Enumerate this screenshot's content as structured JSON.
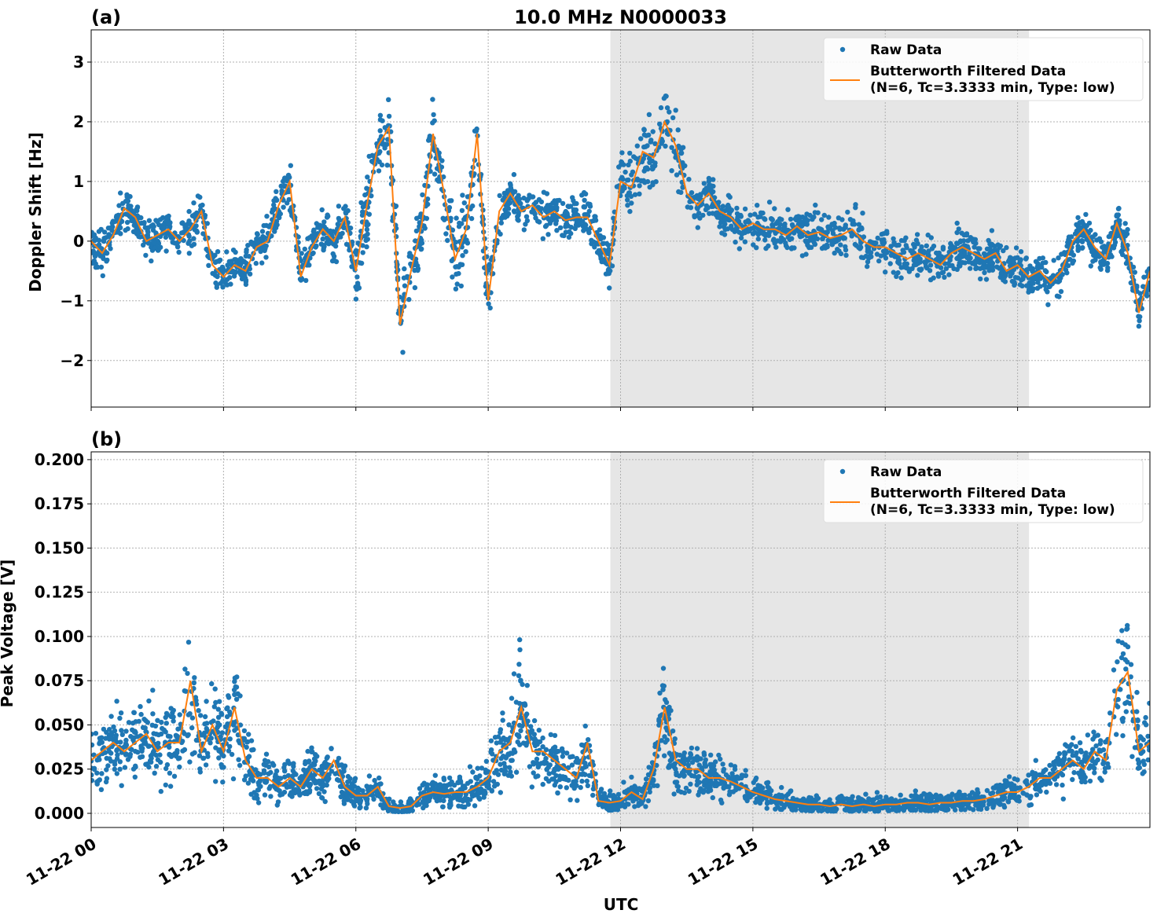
{
  "chart_data": [
    {
      "type": "scatter",
      "panel_label": "(a)",
      "title": "10.0 MHz N0000033",
      "xlabel": "",
      "ylabel": "Doppler Shift [Hz]",
      "xlim_hours": [
        0,
        24
      ],
      "ylim": [
        -2.78,
        3.54
      ],
      "yticks": [
        -2,
        -1,
        0,
        1,
        2,
        3
      ],
      "ytick_labels": [
        "−2",
        "−1",
        "0",
        "1",
        "2",
        "3"
      ],
      "grid": true,
      "legend_placement": "top-right",
      "legend": [
        "Raw Data",
        "Butterworth Filtered Data",
        "(N=6, Tc=3.3333 min, Type: low)"
      ],
      "shaded_interval_hours": [
        11.77,
        21.26
      ],
      "colors": {
        "raw": "#1f77b4",
        "filtered": "#ff7f0e",
        "shade": "#e6e6e6"
      },
      "filtered_step_hours": 0.25,
      "filtered_values": [
        0.0,
        -0.2,
        0.1,
        0.55,
        0.4,
        0.0,
        0.1,
        0.2,
        0.0,
        0.2,
        0.5,
        -0.4,
        -0.6,
        -0.4,
        -0.5,
        -0.1,
        0.0,
        0.6,
        1.0,
        -0.6,
        -0.1,
        0.2,
        0.0,
        0.4,
        -0.5,
        0.6,
        1.6,
        1.9,
        -1.4,
        -0.5,
        0.3,
        1.8,
        0.8,
        -0.3,
        0.2,
        1.8,
        -1.0,
        0.5,
        0.8,
        0.5,
        0.6,
        0.4,
        0.5,
        0.35,
        0.4,
        0.4,
        0.0,
        -0.4,
        1.0,
        0.9,
        1.5,
        1.4,
        2.0,
        1.6,
        0.8,
        0.6,
        0.8,
        0.5,
        0.4,
        0.2,
        0.3,
        0.2,
        0.2,
        0.1,
        0.25,
        0.1,
        0.15,
        0.05,
        0.1,
        0.2,
        0.0,
        -0.1,
        -0.1,
        -0.2,
        -0.3,
        -0.2,
        -0.3,
        -0.4,
        -0.2,
        -0.1,
        -0.2,
        -0.3,
        -0.2,
        -0.5,
        -0.4,
        -0.6,
        -0.5,
        -0.7,
        -0.5,
        0.0,
        0.2,
        -0.1,
        -0.3,
        0.3,
        -0.2,
        -1.2,
        -0.5
      ]
    },
    {
      "type": "scatter",
      "panel_label": "(b)",
      "xlabel": "UTC",
      "ylabel": "Peak Voltage [V]",
      "xlim_hours": [
        0,
        24
      ],
      "ylim": [
        -0.008,
        0.2044
      ],
      "yticks": [
        0,
        0.025,
        0.05,
        0.075,
        0.1,
        0.125,
        0.15,
        0.175,
        0.2
      ],
      "ytick_labels": [
        "0.000",
        "0.025",
        "0.050",
        "0.075",
        "0.100",
        "0.125",
        "0.150",
        "0.175",
        "0.200"
      ],
      "xticks_hours": [
        0,
        3,
        6,
        9,
        12,
        15,
        18,
        21
      ],
      "xtick_labels": [
        "11-22 00",
        "11-22 03",
        "11-22 06",
        "11-22 09",
        "11-22 12",
        "11-22 15",
        "11-22 18",
        "11-22 21"
      ],
      "grid": true,
      "legend_placement": "top-right",
      "legend": [
        "Raw Data",
        "Butterworth Filtered Data",
        "(N=6, Tc=3.3333 min, Type: low)"
      ],
      "shaded_interval_hours": [
        11.77,
        21.26
      ],
      "colors": {
        "raw": "#1f77b4",
        "filtered": "#ff7f0e",
        "shade": "#e6e6e6"
      },
      "filtered_step_hours": 0.25,
      "filtered_values": [
        0.03,
        0.035,
        0.04,
        0.035,
        0.04,
        0.045,
        0.035,
        0.04,
        0.04,
        0.075,
        0.035,
        0.05,
        0.035,
        0.06,
        0.03,
        0.02,
        0.02,
        0.015,
        0.02,
        0.015,
        0.025,
        0.02,
        0.03,
        0.015,
        0.01,
        0.01,
        0.015,
        0.004,
        0.003,
        0.004,
        0.01,
        0.012,
        0.011,
        0.012,
        0.012,
        0.015,
        0.02,
        0.035,
        0.04,
        0.06,
        0.035,
        0.035,
        0.03,
        0.025,
        0.02,
        0.04,
        0.007,
        0.006,
        0.007,
        0.012,
        0.008,
        0.025,
        0.06,
        0.03,
        0.025,
        0.025,
        0.02,
        0.02,
        0.018,
        0.015,
        0.012,
        0.01,
        0.008,
        0.007,
        0.006,
        0.005,
        0.005,
        0.004,
        0.005,
        0.004,
        0.005,
        0.004,
        0.005,
        0.005,
        0.006,
        0.006,
        0.005,
        0.006,
        0.006,
        0.007,
        0.007,
        0.008,
        0.01,
        0.012,
        0.012,
        0.015,
        0.02,
        0.02,
        0.025,
        0.03,
        0.025,
        0.035,
        0.03,
        0.07,
        0.08,
        0.035,
        0.04
      ]
    }
  ]
}
